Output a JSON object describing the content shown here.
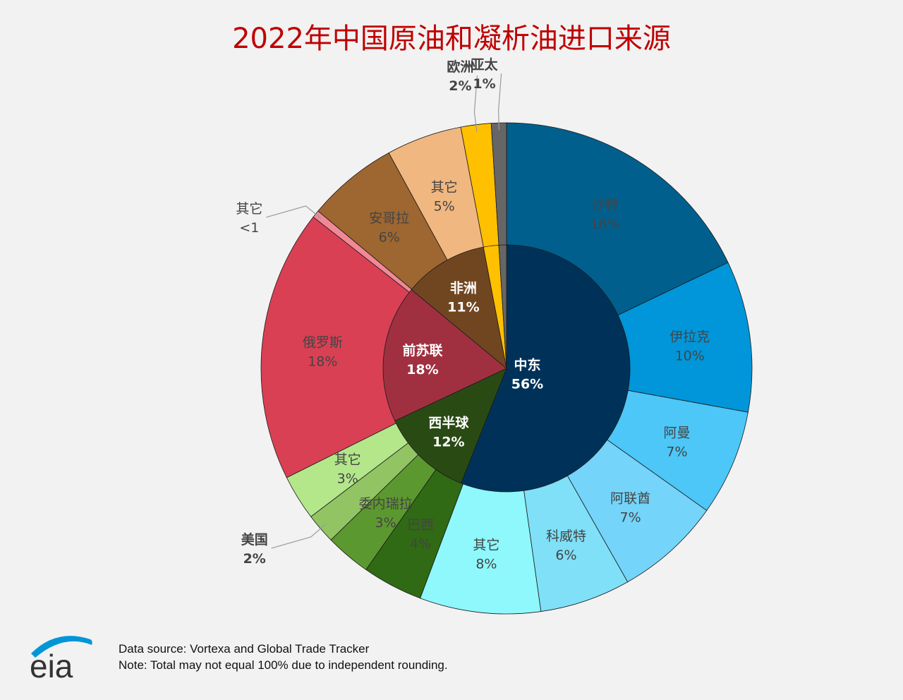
{
  "chart_data": {
    "type": "pie",
    "title": "2022年中国原油和凝析油进口来源",
    "inner": [
      {
        "name": "中东",
        "label": "56%",
        "value": 56,
        "color": "#003259"
      },
      {
        "name": "西半球",
        "label": "12%",
        "value": 12,
        "color": "#2a4a14"
      },
      {
        "name": "前苏联",
        "label": "18%",
        "value": 18,
        "color": "#a03040"
      },
      {
        "name": "非洲",
        "label": "11%",
        "value": 11,
        "color": "#704621"
      },
      {
        "name": "欧洲",
        "label": "2%",
        "value": 2,
        "color": "#ffc000"
      },
      {
        "name": "亚太",
        "label": "1%",
        "value": 1,
        "color": "#666666"
      }
    ],
    "outer": [
      {
        "name": "沙特",
        "label": "18%",
        "value": 18,
        "color": "#005f8c"
      },
      {
        "name": "伊拉克",
        "label": "10%",
        "value": 10,
        "color": "#0096d9"
      },
      {
        "name": "阿曼",
        "label": "7%",
        "value": 7,
        "color": "#4cc7f7"
      },
      {
        "name": "阿联酋",
        "label": "7%",
        "value": 7,
        "color": "#74d4fa"
      },
      {
        "name": "科威特",
        "label": "6%",
        "value": 6,
        "color": "#7fe0f7"
      },
      {
        "name": "其它",
        "label": "8%",
        "value": 8,
        "color": "#8ef8fc"
      },
      {
        "name": "巴西",
        "label": "4%",
        "value": 4,
        "color": "#306a14"
      },
      {
        "name": "委内瑞拉",
        "label": "3%",
        "value": 3,
        "color": "#5c9830"
      },
      {
        "name": "美国",
        "label": "2%",
        "value": 2,
        "color": "#92c464"
      },
      {
        "name": "其它",
        "label": "3%",
        "value": 3,
        "color": "#b3e78a"
      },
      {
        "name": "俄罗斯",
        "label": "18%",
        "value": 18,
        "color": "#d94054"
      },
      {
        "name": "其它",
        "label": "<1",
        "value": 0.5,
        "color": "#f28896"
      },
      {
        "name": "安哥拉",
        "label": "6%",
        "value": 6,
        "color": "#9e6630"
      },
      {
        "name": "其它",
        "label": "5%",
        "value": 5,
        "color": "#f0b780"
      },
      {
        "name": "欧洲",
        "label": "2%",
        "value": 2,
        "color": "#ffc000"
      },
      {
        "name": "亚太",
        "label": "1%",
        "value": 1,
        "color": "#666666"
      }
    ]
  },
  "footer": {
    "source": "Data source: Vortexa and Global Trade Tracker",
    "note": "Note: Total may not equal 100% due to independent rounding."
  },
  "logo": {
    "text": "eia",
    "text_color": "#333333",
    "arc_color": "#0096d7"
  }
}
